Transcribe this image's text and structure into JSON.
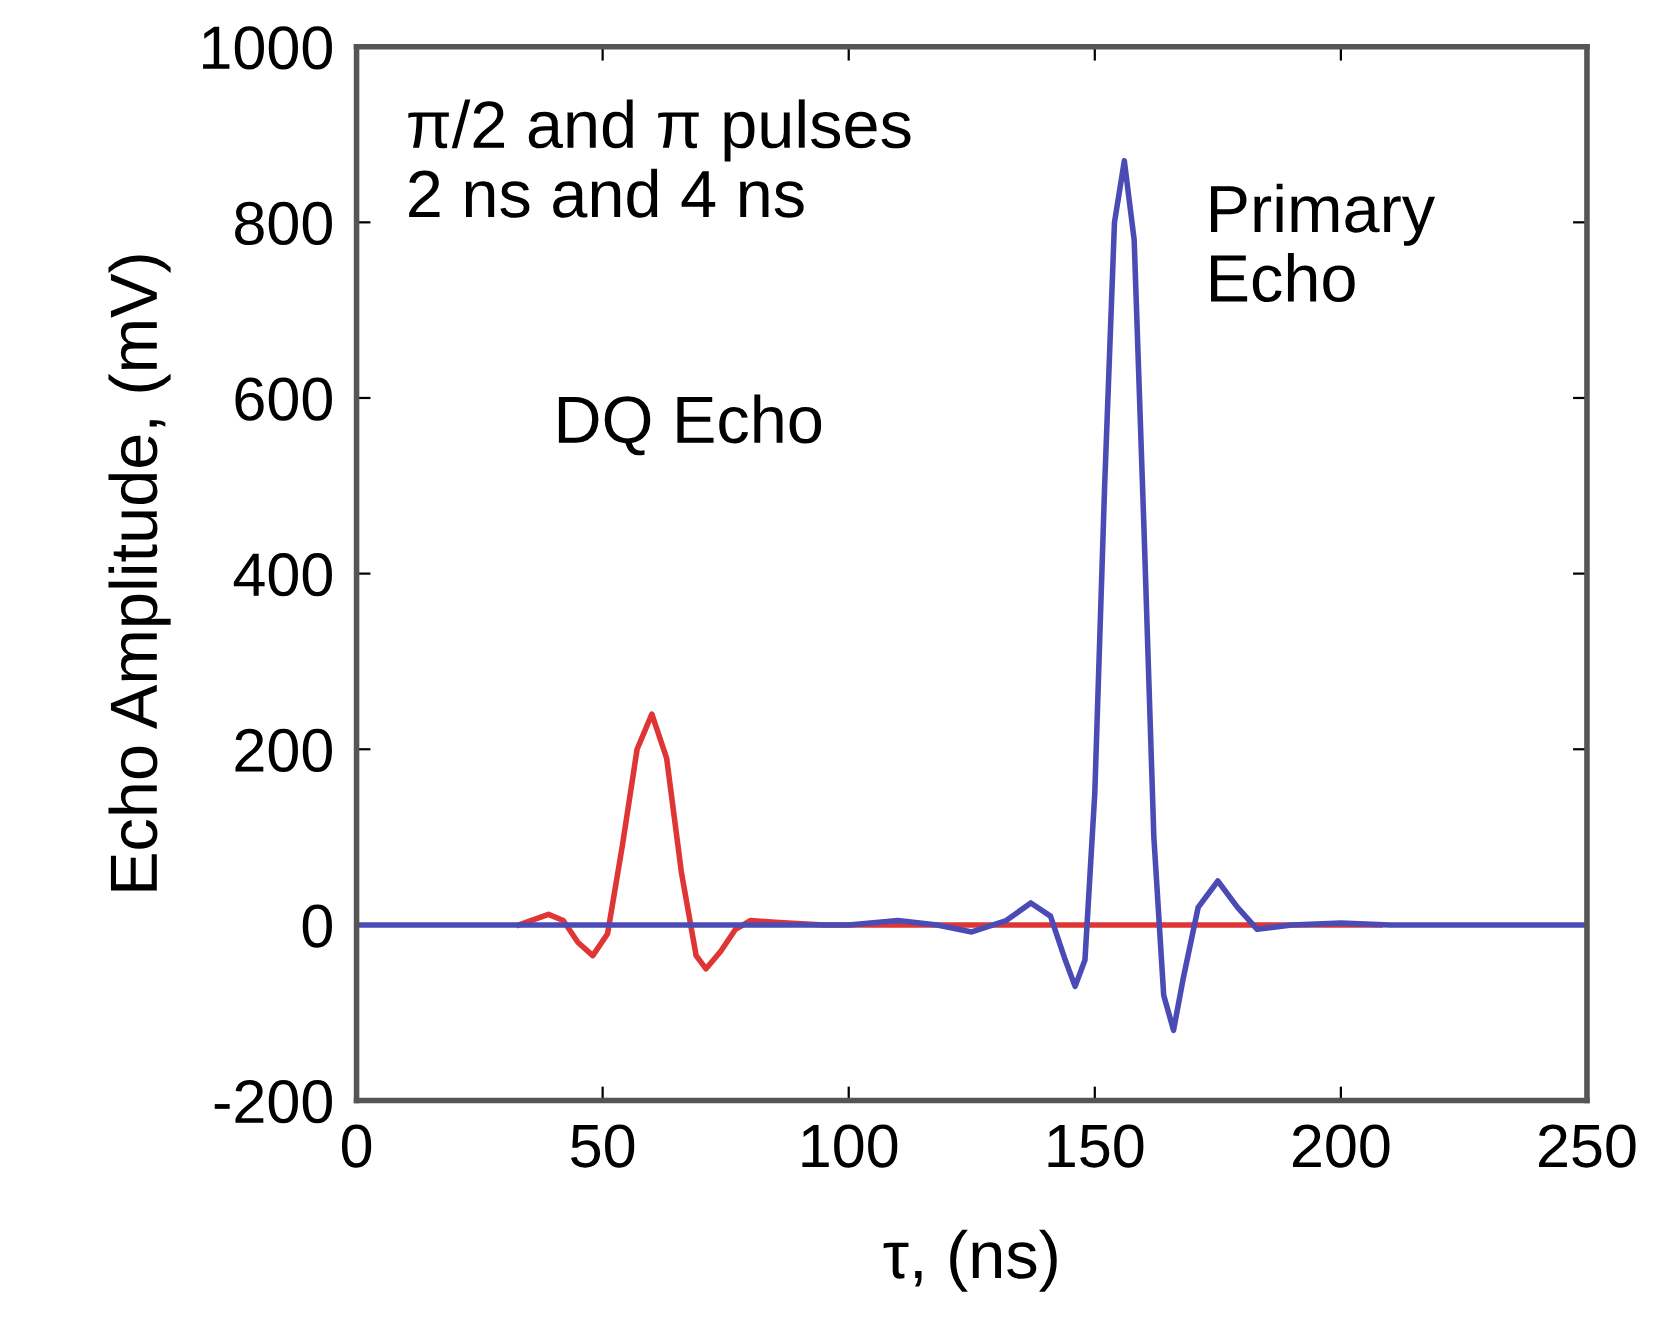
{
  "chart_data": {
    "type": "line",
    "xlabel": "τ, (ns)",
    "ylabel": "Echo Amplitude, (mV)",
    "xlim": [
      0,
      250
    ],
    "xticks": [
      0,
      50,
      100,
      150,
      200,
      250
    ],
    "ylim": [
      -200,
      1000
    ],
    "yticks": [
      -200,
      0,
      200,
      400,
      600,
      800,
      1000
    ],
    "grid": false,
    "marker": "none",
    "line_style": "solid",
    "series": [
      {
        "color": "#e03535",
        "x": [
          33,
          36,
          39,
          42,
          45,
          48,
          51,
          54,
          57,
          60,
          63,
          66,
          69,
          71,
          74,
          77,
          80,
          85,
          95,
          110,
          130,
          160,
          190,
          208
        ],
        "values": [
          0,
          6,
          12,
          5,
          -20,
          -35,
          -10,
          90,
          200,
          240,
          190,
          60,
          -35,
          -50,
          -30,
          -5,
          5,
          3,
          0,
          0,
          0,
          0,
          0,
          0
        ]
      },
      {
        "color": "#4b4bb5",
        "x": [
          0,
          50,
          100,
          110,
          118,
          125,
          132,
          137,
          141,
          144,
          146,
          148,
          150,
          152,
          154,
          156,
          158,
          160,
          162,
          164,
          166,
          168,
          171,
          175,
          179,
          183,
          190,
          200,
          210,
          250
        ],
        "values": [
          0,
          0,
          0,
          5,
          0,
          -8,
          5,
          25,
          10,
          -40,
          -70,
          -40,
          150,
          500,
          800,
          870,
          780,
          450,
          100,
          -80,
          -120,
          -60,
          20,
          50,
          20,
          -5,
          0,
          2,
          0,
          0
        ]
      }
    ],
    "annotations": [
      "π/2 and π pulses\n2 ns and 4 ns",
      "DQ Echo",
      "Primary\nEcho"
    ]
  }
}
